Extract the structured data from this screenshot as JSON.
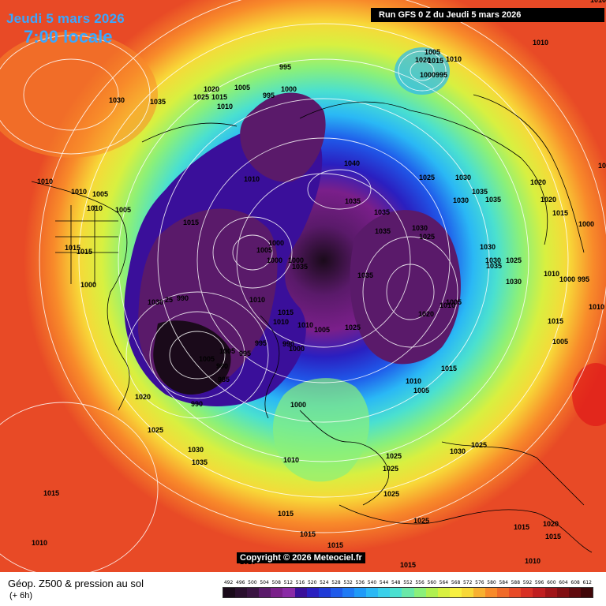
{
  "header": {
    "date_title": "Jeudi 5 mars 2026",
    "time_title": "7:00 locale",
    "run_banner": "Run GFS 0 Z du Jeudi 5 mars 2026"
  },
  "footer": {
    "product_label": "Géop. Z500 & pression au sol",
    "lead_label": "(+ 6h)",
    "copyright": "Copyright © 2026 Meteociel.fr"
  },
  "colors": {
    "title_blue": "#3aa7ff",
    "contour_white": "#ffffff",
    "coastline_black": "#000000"
  },
  "colorbar": {
    "ticks": [
      "492",
      "496",
      "500",
      "504",
      "508",
      "512",
      "516",
      "520",
      "524",
      "528",
      "532",
      "536",
      "540",
      "544",
      "548",
      "552",
      "556",
      "560",
      "564",
      "568",
      "572",
      "576",
      "580",
      "584",
      "588",
      "592",
      "596",
      "600",
      "604",
      "608",
      "612"
    ],
    "colors": [
      "#1a0a1a",
      "#2a0f2e",
      "#3a1442",
      "#5a1a6a",
      "#7a1f8a",
      "#8a2aa6",
      "#3a0f9a",
      "#2a1fc0",
      "#1f3ad6",
      "#1f5aea",
      "#1f7af5",
      "#1f9af8",
      "#2ab8f5",
      "#3ad0ea",
      "#4ae0d0",
      "#6ae8a8",
      "#8af07a",
      "#b0f050",
      "#d8f040",
      "#f8f040",
      "#f8d838",
      "#f8b030",
      "#f88a2a",
      "#f06a28",
      "#e84a26",
      "#d83024",
      "#c01e20",
      "#a01418",
      "#800e12",
      "#600a0e",
      "#400608"
    ]
  },
  "isobar_labels": [
    {
      "text": "1030"
    },
    {
      "text": "1035"
    },
    {
      "text": "1020"
    },
    {
      "text": "1025"
    },
    {
      "text": "1015"
    },
    {
      "text": "1010"
    },
    {
      "text": "1005"
    },
    {
      "text": "995"
    },
    {
      "text": "1000"
    },
    {
      "text": "995"
    },
    {
      "text": "1005"
    },
    {
      "text": "1010"
    },
    {
      "text": "1000995"
    },
    {
      "text": "1010"
    },
    {
      "text": "1010"
    },
    {
      "text": "1010"
    },
    {
      "text": "1010"
    },
    {
      "text": "1005"
    },
    {
      "text": "1005"
    },
    {
      "text": "1015"
    },
    {
      "text": "1015"
    },
    {
      "text": "1015"
    },
    {
      "text": "1010"
    },
    {
      "text": "1000"
    },
    {
      "text": "1000"
    },
    {
      "text": "1005"
    },
    {
      "text": "1000"
    },
    {
      "text": "1000"
    },
    {
      "text": "1035"
    },
    {
      "text": "1030"
    },
    {
      "text": "25"
    },
    {
      "text": "990"
    },
    {
      "text": "1010"
    },
    {
      "text": "1015"
    },
    {
      "text": "1010"
    },
    {
      "text": "1010"
    },
    {
      "text": "1005"
    },
    {
      "text": "995"
    },
    {
      "text": "990"
    },
    {
      "text": "1000"
    },
    {
      "text": "1005"
    },
    {
      "text": "995"
    },
    {
      "text": "990"
    },
    {
      "text": "985"
    },
    {
      "text": "990"
    },
    {
      "text": "1020"
    },
    {
      "text": "1025"
    },
    {
      "text": "1030"
    },
    {
      "text": "1035"
    },
    {
      "text": "1015"
    },
    {
      "text": "1010"
    },
    {
      "text": "1000"
    },
    {
      "text": "1010"
    },
    {
      "text": "1040"
    },
    {
      "text": "1035"
    },
    {
      "text": "1035"
    },
    {
      "text": "1035"
    },
    {
      "text": "1035"
    },
    {
      "text": "1025"
    },
    {
      "text": "1030"
    },
    {
      "text": "1025"
    },
    {
      "text": "1030"
    },
    {
      "text": "1035"
    },
    {
      "text": "1030"
    },
    {
      "text": "1035"
    },
    {
      "text": "1020"
    },
    {
      "text": "1020"
    },
    {
      "text": "1015"
    },
    {
      "text": "1000"
    },
    {
      "text": "1030"
    },
    {
      "text": "1030"
    },
    {
      "text": "1025"
    },
    {
      "text": "1035"
    },
    {
      "text": "1030"
    },
    {
      "text": "1010"
    },
    {
      "text": "1000"
    },
    {
      "text": "995"
    },
    {
      "text": "1005"
    },
    {
      "text": "1010"
    },
    {
      "text": "1020"
    },
    {
      "text": "1010"
    },
    {
      "text": "1015"
    },
    {
      "text": "1005"
    },
    {
      "text": "1015"
    },
    {
      "text": "1010"
    },
    {
      "text": "1005"
    },
    {
      "text": "1015"
    },
    {
      "text": "1030"
    },
    {
      "text": "1025"
    },
    {
      "text": "1025"
    },
    {
      "text": "1025"
    },
    {
      "text": "1025"
    },
    {
      "text": "1025"
    },
    {
      "text": "1015"
    },
    {
      "text": "1015"
    },
    {
      "text": "1015"
    },
    {
      "text": "1015"
    },
    {
      "text": "1020"
    },
    {
      "text": "1015"
    },
    {
      "text": "1015"
    },
    {
      "text": "1010"
    },
    {
      "text": "1010"
    },
    {
      "text": "1005"
    },
    {
      "text": "1010"
    },
    {
      "text": "1025"
    },
    {
      "text": "1020"
    },
    {
      "text": "1015"
    }
  ]
}
